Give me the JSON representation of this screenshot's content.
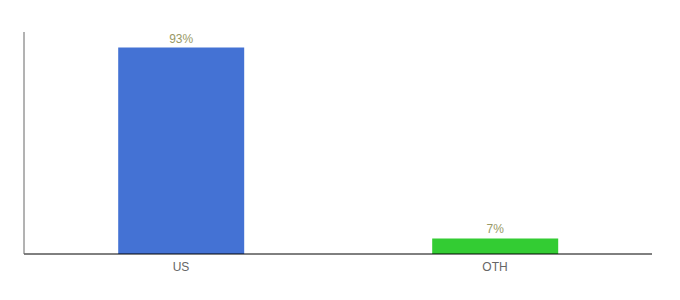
{
  "chart_data": {
    "type": "bar",
    "categories": [
      "US",
      "OTH"
    ],
    "values": [
      93,
      7
    ],
    "value_labels": [
      "93%",
      "7%"
    ],
    "colors": [
      "#4472d4",
      "#33cc33"
    ],
    "ylim": [
      0,
      100
    ],
    "data_labels": true,
    "tick_labels": "x"
  }
}
